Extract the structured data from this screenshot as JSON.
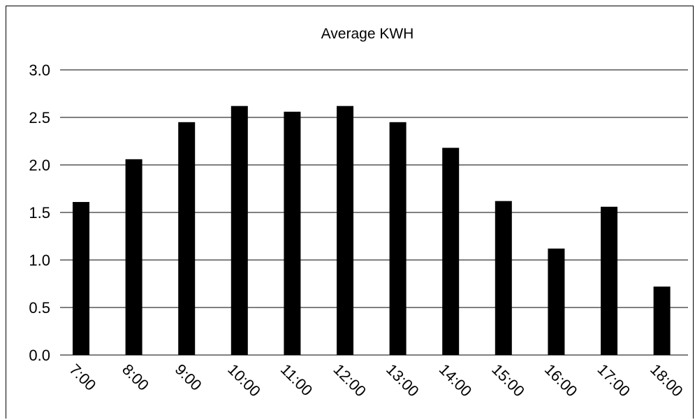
{
  "chart_data": {
    "type": "bar",
    "title": "Average KWH",
    "xlabel": "",
    "ylabel": "",
    "categories": [
      "7:00",
      "8:00",
      "9:00",
      "10:00",
      "11:00",
      "12:00",
      "13:00",
      "14:00",
      "15:00",
      "16:00",
      "17:00",
      "18:00"
    ],
    "values": [
      1.61,
      2.06,
      2.45,
      2.62,
      2.56,
      2.62,
      2.45,
      2.18,
      1.62,
      1.12,
      1.56,
      0.72
    ],
    "ylim": [
      0,
      3.0
    ],
    "yticks": [
      "0.0",
      "0.5",
      "1.0",
      "1.5",
      "2.0",
      "2.5",
      "3.0"
    ],
    "grid": "horizontal",
    "legend": "none",
    "bar_color": "#000000",
    "grid_color": "#000000"
  }
}
